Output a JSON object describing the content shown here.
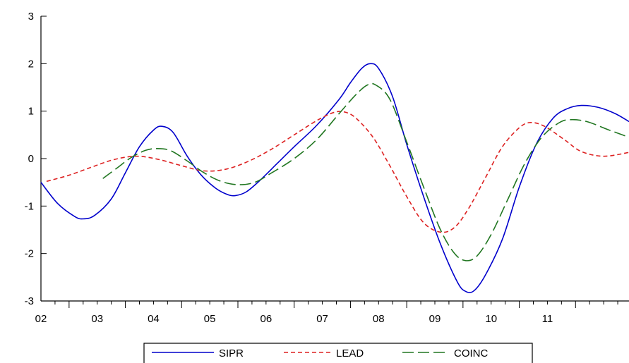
{
  "chart_data": {
    "type": "line",
    "title": "",
    "xlabel": "",
    "ylabel": "",
    "ylim": [
      -3,
      3
    ],
    "xlim": [
      2001.5,
      2011.95
    ],
    "y_ticks": [
      "3",
      "2",
      "1",
      "0",
      "-1",
      "-2",
      "-3"
    ],
    "x_ticks": [
      "02",
      "03",
      "04",
      "05",
      "06",
      "07",
      "08",
      "09",
      "10",
      "11"
    ],
    "grid": false,
    "legend": "bottom",
    "series": [
      {
        "name": "SIPR",
        "color": "#0000cc",
        "style": "solid",
        "points": [
          [
            2001.5,
            -0.5
          ],
          [
            2001.8,
            -0.95
          ],
          [
            2002.1,
            -1.22
          ],
          [
            2002.25,
            -1.27
          ],
          [
            2002.45,
            -1.2
          ],
          [
            2002.75,
            -0.85
          ],
          [
            2003.0,
            -0.3
          ],
          [
            2003.25,
            0.25
          ],
          [
            2003.5,
            0.6
          ],
          [
            2003.65,
            0.68
          ],
          [
            2003.85,
            0.55
          ],
          [
            2004.1,
            0.05
          ],
          [
            2004.35,
            -0.35
          ],
          [
            2004.6,
            -0.62
          ],
          [
            2004.8,
            -0.75
          ],
          [
            2004.95,
            -0.78
          ],
          [
            2005.15,
            -0.7
          ],
          [
            2005.4,
            -0.45
          ],
          [
            2005.7,
            -0.1
          ],
          [
            2006.0,
            0.25
          ],
          [
            2006.4,
            0.7
          ],
          [
            2006.8,
            1.25
          ],
          [
            2007.0,
            1.6
          ],
          [
            2007.2,
            1.9
          ],
          [
            2007.35,
            2.0
          ],
          [
            2007.5,
            1.9
          ],
          [
            2007.75,
            1.3
          ],
          [
            2008.0,
            0.3
          ],
          [
            2008.3,
            -0.8
          ],
          [
            2008.6,
            -1.8
          ],
          [
            2008.9,
            -2.6
          ],
          [
            2009.05,
            -2.8
          ],
          [
            2009.2,
            -2.78
          ],
          [
            2009.4,
            -2.45
          ],
          [
            2009.7,
            -1.7
          ],
          [
            2010.0,
            -0.6
          ],
          [
            2010.3,
            0.3
          ],
          [
            2010.6,
            0.85
          ],
          [
            2010.85,
            1.05
          ],
          [
            2011.1,
            1.12
          ],
          [
            2011.4,
            1.08
          ],
          [
            2011.7,
            0.95
          ],
          [
            2011.95,
            0.78
          ]
        ]
      },
      {
        "name": "LEAD",
        "color": "#dd2222",
        "style": "dashed",
        "points": [
          [
            2001.6,
            -0.48
          ],
          [
            2002.0,
            -0.35
          ],
          [
            2002.4,
            -0.18
          ],
          [
            2002.8,
            -0.02
          ],
          [
            2003.2,
            0.05
          ],
          [
            2003.6,
            -0.02
          ],
          [
            2004.0,
            -0.15
          ],
          [
            2004.4,
            -0.26
          ],
          [
            2004.8,
            -0.22
          ],
          [
            2005.2,
            -0.05
          ],
          [
            2005.6,
            0.2
          ],
          [
            2006.0,
            0.5
          ],
          [
            2006.4,
            0.8
          ],
          [
            2006.7,
            0.97
          ],
          [
            2006.9,
            0.98
          ],
          [
            2007.1,
            0.85
          ],
          [
            2007.4,
            0.45
          ],
          [
            2007.7,
            -0.15
          ],
          [
            2008.0,
            -0.8
          ],
          [
            2008.3,
            -1.35
          ],
          [
            2008.6,
            -1.55
          ],
          [
            2008.85,
            -1.45
          ],
          [
            2009.1,
            -1.05
          ],
          [
            2009.4,
            -0.4
          ],
          [
            2009.7,
            0.25
          ],
          [
            2010.0,
            0.65
          ],
          [
            2010.2,
            0.76
          ],
          [
            2010.45,
            0.68
          ],
          [
            2010.8,
            0.4
          ],
          [
            2011.1,
            0.15
          ],
          [
            2011.5,
            0.05
          ],
          [
            2011.95,
            0.13
          ]
        ]
      },
      {
        "name": "COINC",
        "color": "#227722",
        "style": "longdash",
        "points": [
          [
            2002.6,
            -0.42
          ],
          [
            2002.85,
            -0.2
          ],
          [
            2003.1,
            0.02
          ],
          [
            2003.35,
            0.17
          ],
          [
            2003.55,
            0.21
          ],
          [
            2003.8,
            0.17
          ],
          [
            2004.1,
            -0.05
          ],
          [
            2004.4,
            -0.3
          ],
          [
            2004.7,
            -0.48
          ],
          [
            2005.0,
            -0.55
          ],
          [
            2005.3,
            -0.5
          ],
          [
            2005.6,
            -0.3
          ],
          [
            2006.0,
            0.0
          ],
          [
            2006.4,
            0.4
          ],
          [
            2006.8,
            0.95
          ],
          [
            2007.1,
            1.35
          ],
          [
            2007.3,
            1.55
          ],
          [
            2007.45,
            1.55
          ],
          [
            2007.7,
            1.25
          ],
          [
            2008.0,
            0.35
          ],
          [
            2008.3,
            -0.6
          ],
          [
            2008.6,
            -1.5
          ],
          [
            2008.85,
            -2.0
          ],
          [
            2009.05,
            -2.15
          ],
          [
            2009.25,
            -2.05
          ],
          [
            2009.5,
            -1.6
          ],
          [
            2009.8,
            -0.85
          ],
          [
            2010.1,
            -0.1
          ],
          [
            2010.4,
            0.45
          ],
          [
            2010.7,
            0.75
          ],
          [
            2010.9,
            0.82
          ],
          [
            2011.2,
            0.78
          ],
          [
            2011.6,
            0.6
          ],
          [
            2011.95,
            0.45
          ]
        ]
      }
    ]
  }
}
